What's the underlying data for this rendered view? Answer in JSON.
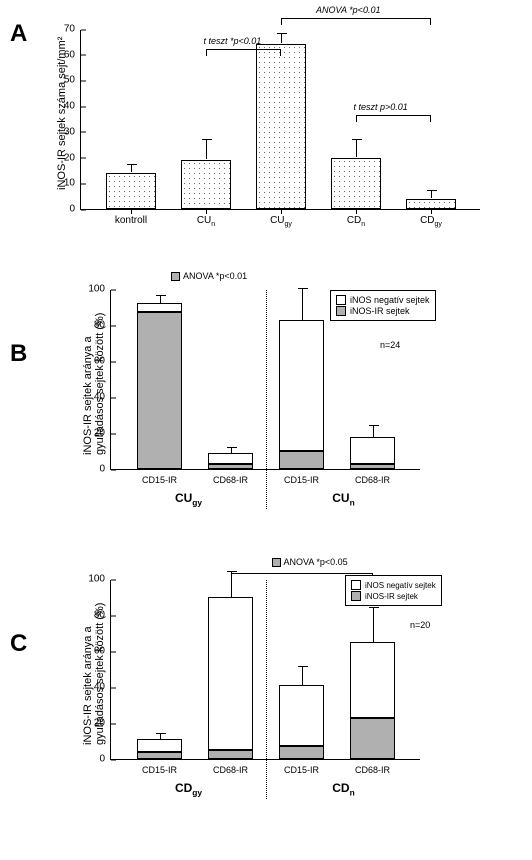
{
  "panels": {
    "A": {
      "label": "A",
      "ytitle": "iNOS-IR sejtek száma sejt/mm²",
      "ylim": [
        0,
        70
      ],
      "ytick_step": 10,
      "categories": [
        "kontroll",
        "CUₙ",
        "CU_gy",
        "CDₙ",
        "CD_gy"
      ],
      "values": [
        14,
        19,
        64,
        20,
        4
      ],
      "errors": [
        3,
        8,
        4,
        7,
        3
      ],
      "fill": "dotted",
      "background": "#ffffff",
      "annotations": [
        {
          "text": "t teszt *p<0.01",
          "bracket": [
            1,
            2
          ],
          "y": 62
        },
        {
          "text": "ANOVA  *p<0.01",
          "bracket": [
            2,
            4
          ],
          "y": 74
        },
        {
          "text": "t teszt p>0.01",
          "bracket": [
            3,
            4
          ],
          "y": 36
        }
      ]
    },
    "B": {
      "label": "B",
      "ytitle": "iNOS-IR sejtek aránya a\ngyulladásos sejtek között (%)",
      "ylim": [
        0,
        100
      ],
      "ytick_step": 20,
      "categories": [
        "CD15-IR",
        "CD68-IR",
        "CD15-IR",
        "CD68-IR"
      ],
      "groups": [
        "CU_gy",
        "CUₙ"
      ],
      "n_text": "n=24",
      "stacked": [
        {
          "gray": 87,
          "white": 5
        },
        {
          "gray": 3,
          "white": 6
        },
        {
          "gray": 10,
          "white": 73
        },
        {
          "gray": 3,
          "white": 15
        }
      ],
      "stacked_errs": [
        {
          "gray": 0,
          "white": 5
        },
        {
          "gray": 0,
          "white": 4
        },
        {
          "gray": 3,
          "white": 18
        },
        {
          "gray": 0,
          "white": 7
        }
      ],
      "legend": [
        {
          "label": "iNOS negatív sejtek",
          "fill": "white"
        },
        {
          "label": "iNOS-IR sejtek",
          "fill": "gray"
        }
      ],
      "anova": {
        "text": "ANOVA *p<0.01",
        "swatch": "gray"
      }
    },
    "C": {
      "label": "C",
      "ytitle": "iNOS-IR sejtek aránya a\ngyulladásos sejtek között (%)",
      "ylim": [
        0,
        100
      ],
      "ytick_step": 20,
      "categories": [
        "CD15-IR",
        "CD68-IR",
        "CD15-IR",
        "CD68-IR"
      ],
      "groups": [
        "CD_gy",
        "CDₙ"
      ],
      "n_text": "n=20",
      "stacked": [
        {
          "gray": 4,
          "white": 7
        },
        {
          "gray": 5,
          "white": 85
        },
        {
          "gray": 7,
          "white": 34
        },
        {
          "gray": 23,
          "white": 42
        }
      ],
      "stacked_errs": [
        {
          "gray": 0,
          "white": 4
        },
        {
          "gray": 5,
          "white": 15
        },
        {
          "gray": 4,
          "white": 11
        },
        {
          "gray": 8,
          "white": 20
        }
      ],
      "legend": [
        {
          "label": "iNOS negatív sejtek",
          "fill": "white"
        },
        {
          "label": "iNOS-IR sejtek",
          "fill": "gray"
        }
      ],
      "anova": {
        "text": "ANOVA  *p<0.05",
        "swatch": "gray",
        "bracket": [
          1,
          3
        ]
      }
    }
  },
  "colors": {
    "gray": "#b0b0b0",
    "white": "#ffffff",
    "axis": "#000000",
    "dotted": "#666666"
  },
  "fontsize": {
    "axis": 10,
    "title": 11,
    "annot": 9,
    "panel": 24
  }
}
